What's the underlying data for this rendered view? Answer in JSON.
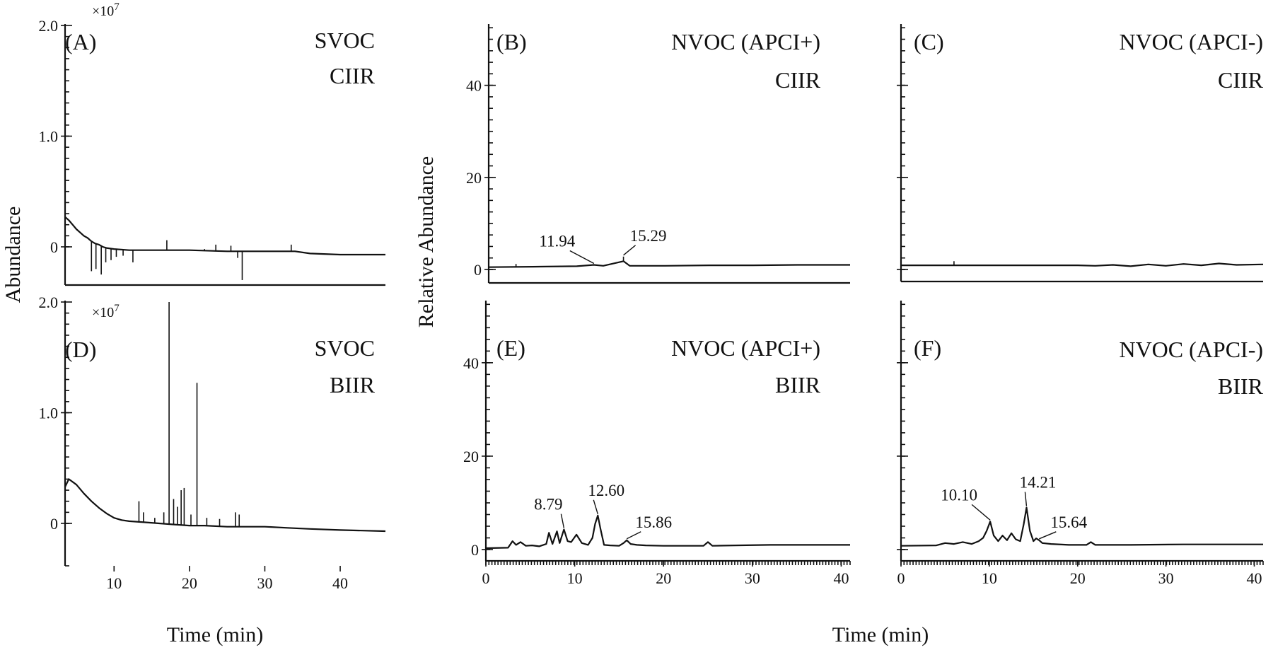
{
  "figure": {
    "ylabel_left": "Abundance",
    "ylabel_middle": "Relative Abundance",
    "xlabel_left": "Time (min)",
    "xlabel_right": "Time (min)"
  },
  "chart_data": [
    {
      "id": "A",
      "type": "line",
      "label": "(A)",
      "title": [
        "SVOC",
        "CIIR"
      ],
      "xlim": [
        3.5,
        46
      ],
      "ylim": [
        -0.3,
        2.0
      ],
      "y_multiplier": "×10",
      "y_exponent": "7",
      "yticks": [
        0,
        1.0,
        2.0
      ],
      "ytick_labels": [
        "0",
        "1.0",
        "2.0"
      ],
      "xticks": [],
      "xtick_labels": [],
      "grid": false,
      "series": [
        {
          "x": [
            3.5,
            4.0,
            4.5,
            5.0,
            5.5,
            6.0,
            6.5,
            7.0,
            7.5,
            8.0,
            8.5,
            9.0,
            10.0,
            12.0,
            14.0,
            16.0,
            20.0,
            25.0,
            30.0,
            32.0,
            34.0,
            36.0,
            40.0,
            46.0
          ],
          "y": [
            0.27,
            0.24,
            0.2,
            0.16,
            0.13,
            0.1,
            0.08,
            0.05,
            0.03,
            0.02,
            0.0,
            -0.01,
            -0.02,
            -0.03,
            -0.03,
            -0.03,
            -0.03,
            -0.04,
            -0.04,
            -0.04,
            -0.04,
            -0.06,
            -0.07,
            -0.07
          ]
        }
      ],
      "spikes": [
        {
          "x": 7.0,
          "y": -0.22
        },
        {
          "x": 7.6,
          "y": -0.2
        },
        {
          "x": 8.3,
          "y": -0.25
        },
        {
          "x": 8.9,
          "y": -0.14
        },
        {
          "x": 9.6,
          "y": -0.12
        },
        {
          "x": 10.3,
          "y": -0.09
        },
        {
          "x": 11.2,
          "y": -0.08
        },
        {
          "x": 12.5,
          "y": -0.14
        },
        {
          "x": 17.0,
          "y": 0.06
        },
        {
          "x": 22.0,
          "y": -0.02
        },
        {
          "x": 23.5,
          "y": 0.02
        },
        {
          "x": 25.5,
          "y": 0.01
        },
        {
          "x": 26.4,
          "y": -0.1
        },
        {
          "x": 27.0,
          "y": -0.3
        },
        {
          "x": 33.5,
          "y": 0.02
        }
      ],
      "annotations": []
    },
    {
      "id": "B",
      "type": "line",
      "label": "(B)",
      "title": [
        "NVOC (APCI+)",
        "CIIR"
      ],
      "xlim": [
        0,
        41
      ],
      "ylim": [
        -3,
        53
      ],
      "yticks": [
        0,
        20,
        40
      ],
      "ytick_labels": [
        "0",
        "20",
        "40"
      ],
      "xticks": [],
      "xtick_labels": [],
      "grid": false,
      "series": [
        {
          "x": [
            0,
            5,
            10,
            11.94,
            13,
            15.29,
            16,
            20,
            25,
            30,
            35,
            41
          ],
          "y": [
            0.5,
            0.6,
            0.7,
            1.0,
            0.8,
            1.8,
            0.8,
            0.8,
            0.9,
            0.9,
            1.0,
            1.0
          ]
        }
      ],
      "spikes": [
        {
          "x": 15.29,
          "y": 2.8
        },
        {
          "x": 3.1,
          "y": 1.2
        }
      ],
      "annotations": [
        {
          "text": "11.94",
          "x": 11.94,
          "y": 1.0
        },
        {
          "text": "15.29",
          "x": 15.29,
          "y": 2.8
        }
      ]
    },
    {
      "id": "C",
      "type": "line",
      "label": "(C)",
      "title": [
        "NVOC (APCI-)",
        "CIIR"
      ],
      "xlim": [
        0,
        41
      ],
      "ylim": [
        -3,
        53
      ],
      "yticks": [
        0,
        20,
        40
      ],
      "ytick_labels": [
        "",
        "",
        ""
      ],
      "xticks": [],
      "xtick_labels": [],
      "grid": false,
      "series": [
        {
          "x": [
            0,
            5,
            10,
            20,
            22,
            24,
            26,
            28,
            30,
            32,
            34,
            36,
            38,
            41
          ],
          "y": [
            0.9,
            0.9,
            0.9,
            0.9,
            0.8,
            1.0,
            0.7,
            1.1,
            0.8,
            1.2,
            0.9,
            1.3,
            1.0,
            1.1
          ]
        }
      ],
      "spikes": [
        {
          "x": 6.0,
          "y": 1.8
        }
      ],
      "annotations": []
    },
    {
      "id": "D",
      "type": "line",
      "label": "(D)",
      "title": [
        "SVOC",
        "BIIR"
      ],
      "xlim": [
        3.5,
        46
      ],
      "ylim": [
        -0.3,
        2.0
      ],
      "y_multiplier": "×10",
      "y_exponent": "7",
      "yticks": [
        0,
        1.0,
        2.0
      ],
      "ytick_labels": [
        "0",
        "1.0",
        "2.0"
      ],
      "xticks": [
        10,
        20,
        30,
        40
      ],
      "xtick_labels": [
        "10",
        "20",
        "30",
        "40"
      ],
      "grid": false,
      "series": [
        {
          "x": [
            3.5,
            4.0,
            5.0,
            6.0,
            7.0,
            8.0,
            9.0,
            10.0,
            11.0,
            12.0,
            14.0,
            16.0,
            18.0,
            20.0,
            22.0,
            25.0,
            28.0,
            30.0,
            33.0,
            36.0,
            40.0,
            46.0
          ],
          "y": [
            0.33,
            0.4,
            0.35,
            0.27,
            0.2,
            0.14,
            0.09,
            0.05,
            0.03,
            0.02,
            0.01,
            0.0,
            -0.01,
            -0.02,
            -0.02,
            -0.03,
            -0.03,
            -0.03,
            -0.04,
            -0.05,
            -0.06,
            -0.07
          ]
        }
      ],
      "spikes": [
        {
          "x": 13.3,
          "y": 0.2
        },
        {
          "x": 13.9,
          "y": 0.1
        },
        {
          "x": 15.4,
          "y": 0.05
        },
        {
          "x": 16.6,
          "y": 0.1
        },
        {
          "x": 17.3,
          "y": 2.0
        },
        {
          "x": 17.9,
          "y": 0.22
        },
        {
          "x": 18.4,
          "y": 0.15
        },
        {
          "x": 18.9,
          "y": 0.3
        },
        {
          "x": 19.3,
          "y": 0.32
        },
        {
          "x": 20.2,
          "y": 0.08
        },
        {
          "x": 21.0,
          "y": 1.27
        },
        {
          "x": 22.3,
          "y": 0.05
        },
        {
          "x": 24.0,
          "y": 0.04
        },
        {
          "x": 26.1,
          "y": 0.1
        },
        {
          "x": 26.6,
          "y": 0.08
        }
      ],
      "annotations": []
    },
    {
      "id": "E",
      "type": "line",
      "label": "(E)",
      "title": [
        "NVOC (APCI+)",
        "BIIR"
      ],
      "xlim": [
        0,
        41
      ],
      "ylim": [
        -3,
        53
      ],
      "yticks": [
        0,
        20,
        40
      ],
      "ytick_labels": [
        "0",
        "20",
        "40"
      ],
      "xticks": [
        0,
        10,
        20,
        30,
        40
      ],
      "xtick_labels": [
        "0",
        "10",
        "20",
        "30",
        "40"
      ],
      "grid": false,
      "series": [
        {
          "x": [
            0,
            2.5,
            3.0,
            3.4,
            3.9,
            4.5,
            5.2,
            6.0,
            6.8,
            7.1,
            7.5,
            8.0,
            8.3,
            8.79,
            9.2,
            9.6,
            10.2,
            10.8,
            11.5,
            12.0,
            12.3,
            12.6,
            12.9,
            13.3,
            14.0,
            15.0,
            15.5,
            15.86,
            16.3,
            17.0,
            18.0,
            20.0,
            22.0,
            24.5,
            25.0,
            25.5,
            28.0,
            32.0,
            36.0,
            41.0
          ],
          "y": [
            0.3,
            0.4,
            1.8,
            1.0,
            1.6,
            0.8,
            0.9,
            0.7,
            1.2,
            3.6,
            1.2,
            3.9,
            1.4,
            4.3,
            1.8,
            1.6,
            3.2,
            1.4,
            1.0,
            2.5,
            5.5,
            7.3,
            4.5,
            1.0,
            0.9,
            0.8,
            1.4,
            2.0,
            1.2,
            1.0,
            0.9,
            0.8,
            0.8,
            0.8,
            1.6,
            0.8,
            0.9,
            1.0,
            1.0,
            1.0
          ]
        }
      ],
      "spikes": [],
      "annotations": [
        {
          "text": "8.79",
          "x": 8.79,
          "y": 4.3
        },
        {
          "text": "12.60",
          "x": 12.6,
          "y": 7.3
        },
        {
          "text": "15.86",
          "x": 15.86,
          "y": 2.0
        }
      ]
    },
    {
      "id": "F",
      "type": "line",
      "label": "(F)",
      "title": [
        "NVOC (APCI-)",
        "BIIR"
      ],
      "xlim": [
        0,
        41
      ],
      "ylim": [
        -3,
        53
      ],
      "yticks": [
        0,
        20,
        40
      ],
      "ytick_labels": [
        "",
        "",
        ""
      ],
      "xticks": [
        0,
        10,
        20,
        30,
        40
      ],
      "xtick_labels": [
        "0",
        "10",
        "20",
        "30",
        "40"
      ],
      "grid": false,
      "series": [
        {
          "x": [
            0,
            4.0,
            5.0,
            6.0,
            7.0,
            8.0,
            8.8,
            9.3,
            9.7,
            10.1,
            10.5,
            11.0,
            11.5,
            12.0,
            12.5,
            13.0,
            13.5,
            13.9,
            14.21,
            14.6,
            15.0,
            15.3,
            15.64,
            16.0,
            17.0,
            19.0,
            21.0,
            21.5,
            22.0,
            26.0,
            32.0,
            36.0,
            41.0
          ],
          "y": [
            0.8,
            0.9,
            1.4,
            1.2,
            1.6,
            1.2,
            1.8,
            2.5,
            4.0,
            6.0,
            3.0,
            1.8,
            3.0,
            2.0,
            3.5,
            2.2,
            1.8,
            5.5,
            9.0,
            4.0,
            1.8,
            2.4,
            2.0,
            1.4,
            1.2,
            1.0,
            1.0,
            1.6,
            1.0,
            1.0,
            1.1,
            1.1,
            1.1
          ]
        }
      ],
      "spikes": [],
      "annotations": [
        {
          "text": "10.10",
          "x": 10.1,
          "y": 6.0
        },
        {
          "text": "14.21",
          "x": 14.21,
          "y": 9.0
        },
        {
          "text": "15.64",
          "x": 15.64,
          "y": 2.0
        }
      ]
    }
  ]
}
